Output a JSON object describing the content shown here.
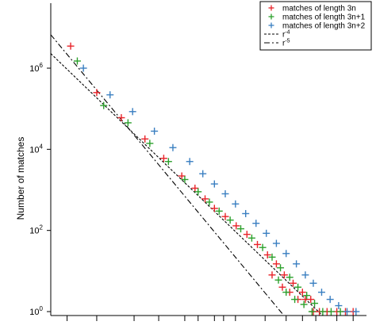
{
  "chart_data": {
    "type": "scatter",
    "ylabel": "Number of matches",
    "xlabel": "",
    "x_scale": "log",
    "y_scale": "log",
    "xlim": [
      1.6,
      120
    ],
    "ylim": [
      0.8,
      40000000
    ],
    "y_ticks": [
      {
        "value": 1,
        "base": "10",
        "exp": "0"
      },
      {
        "value": 100,
        "base": "10",
        "exp": "2"
      },
      {
        "value": 10000,
        "base": "10",
        "exp": "4"
      },
      {
        "value": 1000000,
        "base": "10",
        "exp": "6"
      }
    ],
    "x_ticks": [
      2,
      3,
      5,
      7,
      10,
      12,
      15,
      17,
      20,
      30,
      40,
      50,
      60,
      80,
      100
    ],
    "grid": false,
    "legend_position": "top-right",
    "series": [
      {
        "name": "matches of length 3n",
        "marker": "+",
        "color": "#e8242a",
        "points": [
          [
            2.1,
            3500000
          ],
          [
            3,
            250000
          ],
          [
            4.2,
            60000
          ],
          [
            5.8,
            18000
          ],
          [
            7.5,
            6000
          ],
          [
            9.6,
            2200
          ],
          [
            11.5,
            1100
          ],
          [
            13.2,
            600
          ],
          [
            15,
            350
          ],
          [
            17.4,
            220
          ],
          [
            20.2,
            130
          ],
          [
            23.4,
            80
          ],
          [
            27,
            45
          ],
          [
            31,
            25
          ],
          [
            35,
            15
          ],
          [
            39,
            8
          ],
          [
            44,
            5
          ],
          [
            50,
            3
          ],
          [
            56,
            2
          ],
          [
            63,
            1
          ],
          [
            70,
            1
          ],
          [
            80,
            1
          ],
          [
            90,
            1
          ],
          [
            100,
            1
          ],
          [
            33,
            8
          ],
          [
            38,
            4
          ],
          [
            42,
            3
          ],
          [
            47,
            2
          ],
          [
            52,
            2
          ],
          [
            58,
            1
          ]
        ]
      },
      {
        "name": "matches of length 3n+1",
        "marker": "+",
        "color": "#2ca02c",
        "points": [
          [
            2.3,
            1500000
          ],
          [
            3.3,
            120000
          ],
          [
            4.6,
            45000
          ],
          [
            6.2,
            14000
          ],
          [
            8,
            5000
          ],
          [
            10,
            1800
          ],
          [
            12,
            900
          ],
          [
            14,
            500
          ],
          [
            16,
            300
          ],
          [
            18.6,
            180
          ],
          [
            21.5,
            110
          ],
          [
            25,
            65
          ],
          [
            29,
            38
          ],
          [
            33,
            22
          ],
          [
            37,
            12
          ],
          [
            42,
            7
          ],
          [
            47,
            4
          ],
          [
            53,
            2.5
          ],
          [
            59,
            1.6
          ],
          [
            66,
            1
          ],
          [
            74,
            1
          ],
          [
            84,
            1
          ],
          [
            36,
            6
          ],
          [
            40,
            3
          ],
          [
            45,
            2
          ],
          [
            51,
            1.5
          ],
          [
            57,
            1
          ]
        ]
      },
      {
        "name": "matches of length 3n+2",
        "marker": "+",
        "color": "#3a7fc1",
        "points": [
          [
            2.5,
            1000000
          ],
          [
            3.6,
            220000
          ],
          [
            4.9,
            85000
          ],
          [
            6.6,
            28000
          ],
          [
            8.5,
            11000
          ],
          [
            10.7,
            5000
          ],
          [
            12.8,
            2500
          ],
          [
            15,
            1400
          ],
          [
            17.4,
            800
          ],
          [
            20,
            450
          ],
          [
            23,
            260
          ],
          [
            26.5,
            150
          ],
          [
            30.5,
            85
          ],
          [
            35,
            48
          ],
          [
            40,
            27
          ],
          [
            46,
            15
          ],
          [
            52,
            8
          ],
          [
            58,
            5
          ],
          [
            65,
            3
          ],
          [
            73,
            2
          ],
          [
            82,
            1.4
          ],
          [
            92,
            1
          ],
          [
            104,
            1
          ]
        ]
      }
    ],
    "lines": [
      {
        "name": "r^-4",
        "label_base": "r",
        "label_exp": "-4",
        "style": "dotted",
        "coefficient": 15000000,
        "exponent": -4
      },
      {
        "name": "r^-5",
        "label_base": "r",
        "label_exp": "-5",
        "style": "dash-dot",
        "coefficient": 70000000,
        "exponent": -5
      }
    ]
  }
}
